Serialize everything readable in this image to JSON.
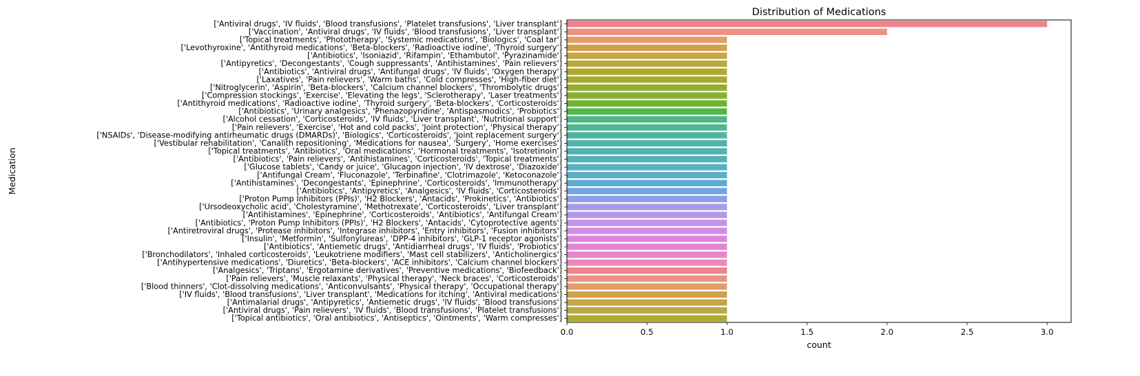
{
  "chart_data": {
    "type": "bar",
    "orientation": "horizontal",
    "title": "Distribution of Medications",
    "xlabel": "count",
    "ylabel": "Medication",
    "xlim": [
      0,
      3.15
    ],
    "xticks": [
      "0.0",
      "0.5",
      "1.0",
      "1.5",
      "2.0",
      "2.5",
      "3.0"
    ],
    "grid": false,
    "categories": [
      "['Antiviral drugs', 'IV fluids', 'Blood transfusions', 'Platelet transfusions', 'Liver transplant']",
      "['Vaccination', 'Antiviral drugs', 'IV fluids', 'Blood transfusions', 'Liver transplant']",
      "['Topical treatments', 'Phototherapy', 'Systemic medications', 'Biologics', 'Coal tar']",
      "['Levothyroxine', 'Antithyroid medications', 'Beta-blockers', 'Radioactive iodine', 'Thyroid surgery']",
      "['Antibiotics', 'Isoniazid', 'Rifampin', 'Ethambutol', 'Pyrazinamide']",
      "['Antipyretics', 'Decongestants', 'Cough suppressants', 'Antihistamines', 'Pain relievers']",
      "['Antibiotics', 'Antiviral drugs', 'Antifungal drugs', 'IV fluids', 'Oxygen therapy']",
      "['Laxatives', 'Pain relievers', 'Warm baths', 'Cold compresses', 'High-fiber diet']",
      "['Nitroglycerin', 'Aspirin', 'Beta-blockers', 'Calcium channel blockers', 'Thrombolytic drugs']",
      "['Compression stockings', 'Exercise', 'Elevating the legs', 'Sclerotherapy', 'Laser treatments']",
      "['Antithyroid medications', 'Radioactive iodine', 'Thyroid surgery', 'Beta-blockers', 'Corticosteroids']",
      "['Antibiotics', 'Urinary analgesics', 'Phenazopyridine', 'Antispasmodics', 'Probiotics']",
      "['Alcohol cessation', 'Corticosteroids', 'IV fluids', 'Liver transplant', 'Nutritional support']",
      "['Pain relievers', 'Exercise', 'Hot and cold packs', 'Joint protection', 'Physical therapy']",
      "['NSAIDs', 'Disease-modifying antirheumatic drugs (DMARDs)', 'Biologics', 'Corticosteroids', 'Joint replacement surgery']",
      "['Vestibular rehabilitation', 'Canalith repositioning', 'Medications for nausea', 'Surgery', 'Home exercises']",
      "['Topical treatments', 'Antibiotics', 'Oral medications', 'Hormonal treatments', 'Isotretinoin']",
      "['Antibiotics', 'Pain relievers', 'Antihistamines', 'Corticosteroids', 'Topical treatments']",
      "['Glucose tablets', 'Candy or juice', 'Glucagon injection', 'IV dextrose', 'Diazoxide']",
      "['Antifungal Cream', 'Fluconazole', 'Terbinafine', 'Clotrimazole', 'Ketoconazole']",
      "['Antihistamines', 'Decongestants', 'Epinephrine', 'Corticosteroids', 'Immunotherapy']",
      "['Antibiotics', 'Antipyretics', 'Analgesics', 'IV fluids', 'Corticosteroids']",
      "['Proton Pump Inhibitors (PPIs)', 'H2 Blockers', 'Antacids', 'Prokinetics', 'Antibiotics']",
      "['Ursodeoxycholic acid', 'Cholestyramine', 'Methotrexate', 'Corticosteroids', 'Liver transplant']",
      "['Antihistamines', 'Epinephrine', 'Corticosteroids', 'Antibiotics', 'Antifungal Cream']",
      "['Antibiotics', 'Proton Pump Inhibitors (PPIs)', 'H2 Blockers', 'Antacids', 'Cytoprotective agents']",
      "['Antiretroviral drugs', 'Protease inhibitors', 'Integrase inhibitors', 'Entry inhibitors', 'Fusion inhibitors']",
      "['Insulin', 'Metformin', 'Sulfonylureas', 'DPP-4 inhibitors', 'GLP-1 receptor agonists']",
      "['Antibiotics', 'Antiemetic drugs', 'Antidiarrheal drugs', 'IV fluids', 'Probiotics']",
      "['Bronchodilators', 'Inhaled corticosteroids', 'Leukotriene modifiers', 'Mast cell stabilizers', 'Anticholinergics']",
      "['Antihypertensive medications', 'Diuretics', 'Beta-blockers', 'ACE inhibitors', 'Calcium channel blockers']",
      "['Analgesics', 'Triptans', 'Ergotamine derivatives', 'Preventive medications', 'Biofeedback']",
      "['Pain relievers', 'Muscle relaxants', 'Physical therapy', 'Neck braces', 'Corticosteroids']",
      "['Blood thinners', 'Clot-dissolving medications', 'Anticonvulsants', 'Physical therapy', 'Occupational therapy']",
      "['IV fluids', 'Blood transfusions', 'Liver transplant', 'Medications for itching', 'Antiviral medications']",
      "['Antimalarial drugs', 'Antipyretics', 'Antiemetic drugs', 'IV fluids', 'Blood transfusions']",
      "['Antiviral drugs', 'Pain relievers', 'IV fluids', 'Blood transfusions', 'Platelet transfusions']",
      "['Topical antibiotics', 'Oral antibiotics', 'Antiseptics', 'Ointments', 'Warm compresses']"
    ],
    "values": [
      3,
      2,
      1,
      1,
      1,
      1,
      1,
      1,
      1,
      1,
      1,
      1,
      1,
      1,
      1,
      1,
      1,
      1,
      1,
      1,
      1,
      1,
      1,
      1,
      1,
      1,
      1,
      1,
      1,
      1,
      1,
      1,
      1,
      1,
      1,
      1,
      1,
      1
    ],
    "colors": [
      "#f0848c",
      "#ee9084",
      "#e29d69",
      "#d1a147",
      "#c5a741",
      "#b9a845",
      "#b0a92f",
      "#a3ac31",
      "#93af32",
      "#86b131",
      "#6fb532",
      "#4eb84d",
      "#4eb787",
      "#50b595",
      "#50b4a2",
      "#50b3aa",
      "#52b3b1",
      "#55b2b8",
      "#58b1c0",
      "#5aafcb",
      "#5cabd7",
      "#71a5e3",
      "#8ea0e5",
      "#a69ce7",
      "#b498ea",
      "#c393ea",
      "#d38be7",
      "#df85e1",
      "#e484d7",
      "#e886ca",
      "#eb88bd"
    ]
  }
}
